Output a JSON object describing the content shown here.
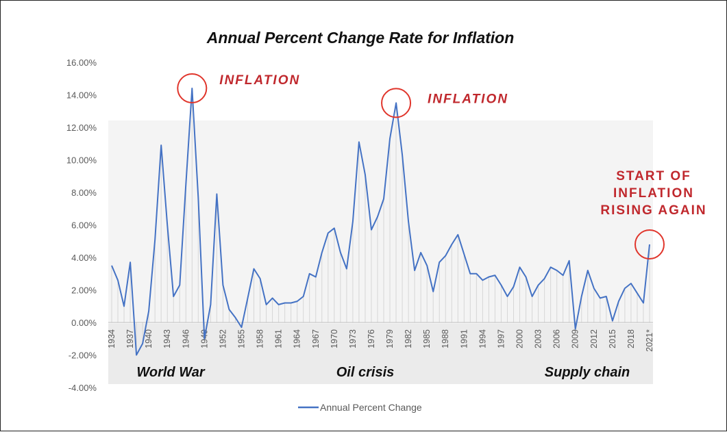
{
  "chart_data": {
    "type": "line",
    "title": "Annual Percent Change Rate for Inflation",
    "xlabel": "",
    "ylabel": "",
    "ylim": [
      -4,
      16
    ],
    "y_ticks": [
      16,
      14,
      12,
      10,
      8,
      6,
      4,
      2,
      0,
      -2,
      -4
    ],
    "y_tick_labels": [
      "16.00%",
      "14.00%",
      "12.00%",
      "10.00%",
      "8.00%",
      "6.00%",
      "4.00%",
      "2.00%",
      "0.00%",
      "-2.00%",
      "-4.00%"
    ],
    "x_tick_labels": [
      "1934",
      "1937",
      "1940",
      "1943",
      "1946",
      "1949",
      "1952",
      "1955",
      "1958",
      "1961",
      "1964",
      "1967",
      "1970",
      "1973",
      "1976",
      "1979",
      "1982",
      "1985",
      "1988",
      "1991",
      "1994",
      "1997",
      "2000",
      "2003",
      "2006",
      "2009",
      "2012",
      "2015",
      "2018",
      "2021*"
    ],
    "x": [
      1934,
      1935,
      1936,
      1937,
      1938,
      1939,
      1940,
      1941,
      1942,
      1943,
      1944,
      1945,
      1946,
      1947,
      1948,
      1949,
      1950,
      1951,
      1952,
      1953,
      1954,
      1955,
      1956,
      1957,
      1958,
      1959,
      1960,
      1961,
      1962,
      1963,
      1964,
      1965,
      1966,
      1967,
      1968,
      1969,
      1970,
      1971,
      1972,
      1973,
      1974,
      1975,
      1976,
      1977,
      1978,
      1979,
      1980,
      1981,
      1982,
      1983,
      1984,
      1985,
      1986,
      1987,
      1988,
      1989,
      1990,
      1991,
      1992,
      1993,
      1994,
      1995,
      1996,
      1997,
      1998,
      1999,
      2000,
      2001,
      2002,
      2003,
      2004,
      2005,
      2006,
      2007,
      2008,
      2009,
      2010,
      2011,
      2012,
      2013,
      2014,
      2015,
      2016,
      2017,
      2018,
      2019,
      2020,
      2021
    ],
    "series": [
      {
        "name": "Annual Percent Change",
        "color": "#4472c4",
        "values": [
          3.5,
          2.6,
          1.0,
          3.7,
          -2.0,
          -1.3,
          0.7,
          5.1,
          10.9,
          6.0,
          1.6,
          2.3,
          8.5,
          14.4,
          7.7,
          -1.0,
          1.1,
          7.9,
          2.3,
          0.8,
          0.3,
          -0.3,
          1.5,
          3.3,
          2.7,
          1.1,
          1.5,
          1.1,
          1.2,
          1.2,
          1.3,
          1.6,
          3.0,
          2.8,
          4.3,
          5.5,
          5.8,
          4.3,
          3.3,
          6.2,
          11.1,
          9.1,
          5.7,
          6.5,
          7.6,
          11.3,
          13.5,
          10.3,
          6.2,
          3.2,
          4.3,
          3.5,
          1.9,
          3.7,
          4.1,
          4.8,
          5.4,
          4.2,
          3.0,
          3.0,
          2.6,
          2.8,
          2.9,
          2.3,
          1.6,
          2.2,
          3.4,
          2.8,
          1.6,
          2.3,
          2.7,
          3.4,
          3.2,
          2.9,
          3.8,
          -0.4,
          1.6,
          3.2,
          2.1,
          1.5,
          1.6,
          0.1,
          1.3,
          2.1,
          2.4,
          1.8,
          1.2,
          4.8
        ]
      }
    ],
    "era_labels": [
      "World War",
      "Oil crisis",
      "Supply chain"
    ],
    "annotations": [
      {
        "text": "INFLATION",
        "year": 1947
      },
      {
        "text": "INFLATION",
        "year": 1980
      },
      {
        "text_lines": [
          "START OF",
          "INFLATION",
          "RISING AGAIN"
        ],
        "year": 2021
      }
    ],
    "legend": "bottom",
    "grid": false
  }
}
